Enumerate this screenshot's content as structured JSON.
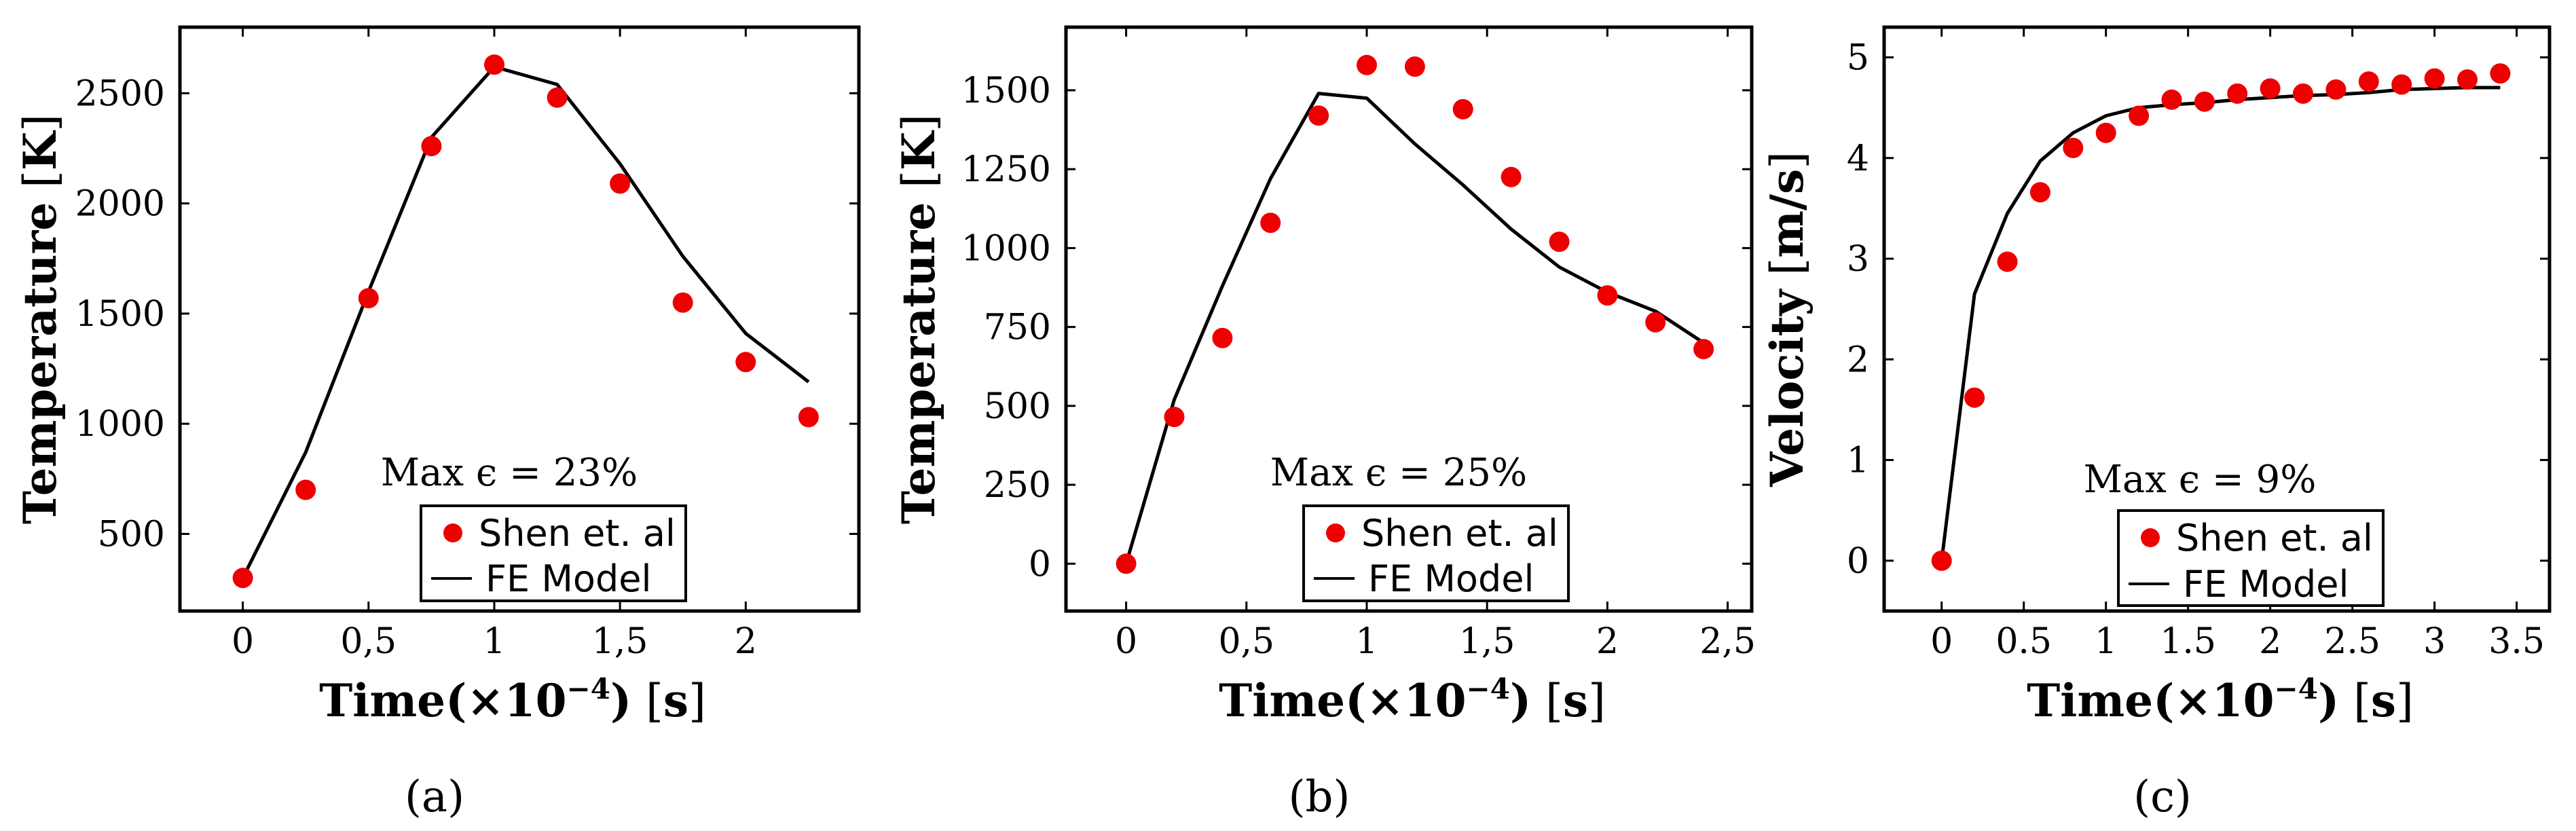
{
  "figure": {
    "captions": [
      "(a)",
      "(b)",
      "(c)"
    ]
  },
  "colors": {
    "marker": "#ee0000",
    "line": "#000000",
    "axis": "#000000"
  },
  "chart_data": [
    {
      "type": "line",
      "title": "",
      "caption_letter": "a",
      "xlabel": "Time(×10⁻⁴) [s]",
      "xlabel_parts": {
        "prefix": "Time(×10",
        "sup": "−4",
        "suffix": ")",
        "unit_open": " [",
        "unit": "s",
        "unit_close": "]"
      },
      "ylabel": "Temperature [K]",
      "ylabel_parts": {
        "main": "Temperature",
        "unit_open": " [",
        "unit": "K",
        "unit_close": "]"
      },
      "xlim": [
        -0.25,
        2.45
      ],
      "ylim": [
        150,
        2800
      ],
      "xticks": [
        0,
        0.5,
        1,
        1.5,
        2
      ],
      "xtick_labels": [
        "0",
        "0,5",
        "1",
        "1,5",
        "2"
      ],
      "yticks": [
        500,
        1000,
        1500,
        2000,
        2500
      ],
      "ytick_labels": [
        "500",
        "1000",
        "1500",
        "2000",
        "2500"
      ],
      "annotation": "Max ϵ = 23%",
      "legend": [
        "Shen et. al",
        "FE Model"
      ],
      "series": [
        {
          "name": "Shen et. al",
          "kind": "scatter",
          "x": [
            0,
            0.25,
            0.5,
            0.75,
            1.0,
            1.25,
            1.5,
            1.75,
            2.0,
            2.25
          ],
          "y": [
            300,
            700,
            1570,
            2260,
            2630,
            2480,
            2090,
            1550,
            1280,
            1030
          ]
        },
        {
          "name": "FE Model",
          "kind": "line",
          "x": [
            0,
            0.25,
            0.5,
            0.75,
            1.0,
            1.25,
            1.5,
            1.75,
            2.0,
            2.25
          ],
          "y": [
            300,
            870,
            1600,
            2300,
            2620,
            2540,
            2180,
            1760,
            1410,
            1190
          ]
        }
      ]
    },
    {
      "type": "line",
      "title": "",
      "caption_letter": "b",
      "xlabel": "Time(×10⁻⁴) [s]",
      "xlabel_parts": {
        "prefix": "Time(×10",
        "sup": "−4",
        "suffix": ")",
        "unit_open": " [",
        "unit": "s",
        "unit_close": "]"
      },
      "ylabel": "Temperature [K]",
      "ylabel_parts": {
        "main": "Temperature",
        "unit_open": " [",
        "unit": "K",
        "unit_close": "]"
      },
      "xlim": [
        -0.25,
        2.6
      ],
      "ylim": [
        -150,
        1700
      ],
      "xticks": [
        0,
        0.5,
        1,
        1.5,
        2,
        2.5
      ],
      "xtick_labels": [
        "0",
        "0,5",
        "1",
        "1,5",
        "2",
        "2,5"
      ],
      "yticks": [
        0,
        250,
        500,
        750,
        1000,
        1250,
        1500
      ],
      "ytick_labels": [
        "0",
        "250",
        "500",
        "750",
        "1000",
        "1250",
        "1500"
      ],
      "annotation": "Max ϵ = 25%",
      "legend": [
        "Shen et. al",
        "FE Model"
      ],
      "series": [
        {
          "name": "Shen et. al",
          "kind": "scatter",
          "x": [
            0,
            0.2,
            0.4,
            0.6,
            0.8,
            1.0,
            1.2,
            1.4,
            1.6,
            1.8,
            2.0,
            2.2,
            2.4
          ],
          "y": [
            0,
            465,
            715,
            1080,
            1420,
            1580,
            1575,
            1440,
            1225,
            1020,
            850,
            765,
            680
          ]
        },
        {
          "name": "FE Model",
          "kind": "line",
          "x": [
            0,
            0.2,
            0.4,
            0.6,
            0.8,
            1.0,
            1.2,
            1.4,
            1.6,
            1.8,
            2.0,
            2.2,
            2.4
          ],
          "y": [
            0,
            520,
            880,
            1220,
            1490,
            1475,
            1330,
            1200,
            1060,
            940,
            860,
            800,
            700
          ]
        }
      ]
    },
    {
      "type": "line",
      "title": "",
      "caption_letter": "c",
      "xlabel": "Time(×10⁻⁴) [s]",
      "xlabel_parts": {
        "prefix": "Time(×10",
        "sup": "−4",
        "suffix": ")",
        "unit_open": " [",
        "unit": "s",
        "unit_close": "]"
      },
      "ylabel": "Velocity [m/s]",
      "ylabel_parts": {
        "main": "Velocity",
        "unit_open": " [",
        "unit": "m/s",
        "unit_close": "]"
      },
      "xlim": [
        -0.35,
        3.7
      ],
      "ylim": [
        -0.5,
        5.3
      ],
      "xticks": [
        0,
        0.5,
        1,
        1.5,
        2,
        2.5,
        3,
        3.5
      ],
      "xtick_labels": [
        "0",
        "0.5",
        "1",
        "1.5",
        "2",
        "2.5",
        "3",
        "3.5"
      ],
      "yticks": [
        0,
        1,
        2,
        3,
        4,
        5
      ],
      "ytick_labels": [
        "0",
        "1",
        "2",
        "3",
        "4",
        "5"
      ],
      "annotation": "Max ϵ = 9%",
      "legend": [
        "Shen et. al",
        "FE Model"
      ],
      "series": [
        {
          "name": "Shen et. al",
          "kind": "scatter",
          "x": [
            0,
            0.2,
            0.4,
            0.6,
            0.8,
            1.0,
            1.2,
            1.4,
            1.6,
            1.8,
            2.0,
            2.2,
            2.4,
            2.6,
            2.8,
            3.0,
            3.2,
            3.4
          ],
          "y": [
            0,
            1.62,
            2.97,
            3.66,
            4.1,
            4.25,
            4.42,
            4.58,
            4.56,
            4.64,
            4.69,
            4.64,
            4.68,
            4.76,
            4.73,
            4.79,
            4.78,
            4.84
          ]
        },
        {
          "name": "FE Model",
          "kind": "line",
          "x": [
            0,
            0.2,
            0.4,
            0.6,
            0.8,
            1.0,
            1.2,
            1.4,
            1.6,
            1.8,
            2.0,
            2.2,
            2.4,
            2.6,
            2.8,
            3.0,
            3.2,
            3.4
          ],
          "y": [
            0,
            2.65,
            3.45,
            3.97,
            4.25,
            4.42,
            4.5,
            4.53,
            4.55,
            4.58,
            4.6,
            4.62,
            4.63,
            4.65,
            4.68,
            4.69,
            4.7,
            4.7
          ]
        }
      ]
    }
  ]
}
